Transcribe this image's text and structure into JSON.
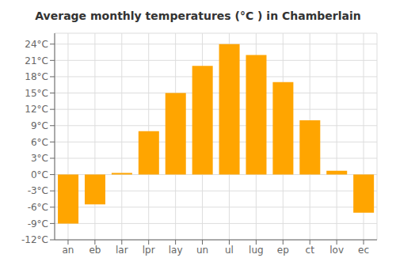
{
  "chart_data": {
    "type": "bar",
    "title": "Average monthly temperatures (°C ) in Chamberlain",
    "categories": [
      "an",
      "eb",
      "lar",
      "lpr",
      "lay",
      "un",
      "ul",
      "lug",
      "ep",
      "ct",
      "lov",
      "ec"
    ],
    "values": [
      -9,
      -5.5,
      0.3,
      8,
      15,
      20,
      24,
      22,
      17,
      10,
      0.7,
      -7
    ],
    "color": "#FFA500",
    "ylim": [
      -12,
      26
    ],
    "yticks": [
      {
        "value": -12,
        "label": "-12°C"
      },
      {
        "value": -9,
        "label": "-9°C"
      },
      {
        "value": -6,
        "label": "-6°C"
      },
      {
        "value": -3,
        "label": "-3°C"
      },
      {
        "value": 0,
        "label": "0°C"
      },
      {
        "value": 3,
        "label": "3°C"
      },
      {
        "value": 6,
        "label": "6°C"
      },
      {
        "value": 9,
        "label": "9°C"
      },
      {
        "value": 12,
        "label": "12°C"
      },
      {
        "value": 15,
        "label": "15°C"
      },
      {
        "value": 18,
        "label": "18°C"
      },
      {
        "value": 21,
        "label": "21°C"
      },
      {
        "value": 24,
        "label": "24°C"
      }
    ],
    "grid": true
  }
}
